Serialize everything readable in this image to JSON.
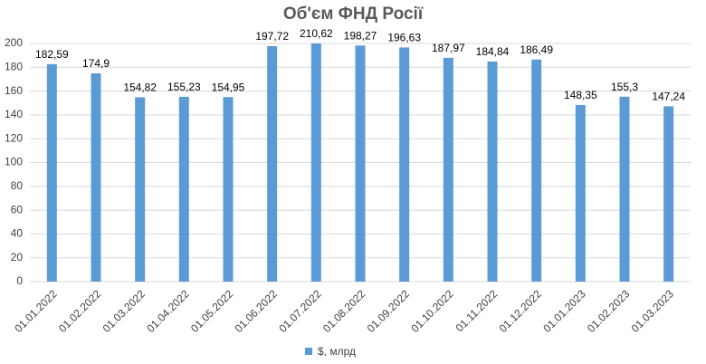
{
  "chart_data": {
    "type": "bar",
    "title": "Об'єм ФНД Росії",
    "categories": [
      "01.01.2022",
      "01.02.2022",
      "01.03.2022",
      "01.04.2022",
      "01.05.2022",
      "01.06.2022",
      "01.07.2022",
      "01.08.2022",
      "01.09.2022",
      "01.10.2022",
      "01.11.2022",
      "01.12.2022",
      "01.01.2023",
      "01.02.2023",
      "01.03.2023"
    ],
    "series": [
      {
        "name": "$, млрд",
        "color": "#5b9bd5",
        "values": [
          182.59,
          174.9,
          154.82,
          155.23,
          154.95,
          197.72,
          210.62,
          198.27,
          196.63,
          187.97,
          184.84,
          186.49,
          148.35,
          155.3,
          147.24
        ],
        "value_labels": [
          "182,59",
          "174,9",
          "154,82",
          "155,23",
          "154,95",
          "197,72",
          "210,62",
          "198,27",
          "196,63",
          "187,97",
          "184,84",
          "186,49",
          "148,35",
          "155,3",
          "147,24"
        ]
      }
    ],
    "ylim": [
      0,
      200
    ],
    "yticks": [
      0,
      20,
      40,
      60,
      80,
      100,
      120,
      140,
      160,
      180,
      200
    ],
    "grid": true,
    "legend": "bottom"
  }
}
